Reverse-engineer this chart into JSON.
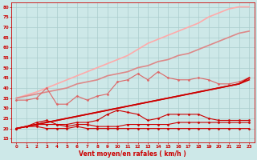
{
  "xlabel": "Vent moyen/en rafales ( km/h )",
  "x": [
    0,
    1,
    2,
    3,
    4,
    5,
    6,
    7,
    8,
    9,
    10,
    11,
    12,
    13,
    14,
    15,
    16,
    17,
    18,
    19,
    20,
    21,
    22,
    23
  ],
  "bg_color": "#cde8e8",
  "grid_color": "#aacccc",
  "line_flat1": {
    "y": [
      20,
      21,
      21,
      20,
      20,
      20,
      21,
      20,
      20,
      20,
      20,
      20,
      20,
      20,
      20,
      20,
      20,
      20,
      20,
      20,
      20,
      20,
      20,
      20
    ],
    "color": "#cc0000",
    "lw": 0.8,
    "marker": "D",
    "ms": 1.5
  },
  "line_flat2": {
    "y": [
      20,
      21,
      22,
      22,
      22,
      21,
      22,
      22,
      21,
      21,
      21,
      22,
      22,
      22,
      22,
      22,
      23,
      23,
      23,
      23,
      23,
      23,
      23,
      23
    ],
    "color": "#cc0000",
    "lw": 0.8,
    "marker": "D",
    "ms": 1.5
  },
  "line_hump": {
    "y": [
      20,
      21,
      23,
      24,
      22,
      22,
      23,
      23,
      24,
      27,
      29,
      28,
      27,
      24,
      25,
      27,
      27,
      27,
      27,
      25,
      24,
      24,
      24,
      24
    ],
    "color": "#cc0000",
    "lw": 0.8,
    "marker": "D",
    "ms": 1.5
  },
  "line_straight_dark": {
    "y": [
      20,
      21,
      22,
      23,
      24,
      25,
      26,
      27,
      28,
      29,
      30,
      31,
      32,
      33,
      34,
      35,
      36,
      37,
      38,
      39,
      40,
      41,
      42,
      44
    ],
    "color": "#cc0000",
    "lw": 1.2,
    "marker": null
  },
  "line_straight_dark2": {
    "y": [
      20,
      21,
      22,
      23,
      24,
      25,
      26,
      27,
      28,
      29,
      30,
      31,
      32,
      33,
      34,
      35,
      36,
      37,
      38,
      39,
      40,
      41,
      42,
      45
    ],
    "color": "#cc0000",
    "lw": 1.2,
    "marker": null
  },
  "line_zigzag_medium": {
    "y": [
      34,
      34,
      35,
      40,
      32,
      32,
      36,
      34,
      36,
      37,
      43,
      44,
      47,
      44,
      48,
      45,
      44,
      44,
      45,
      44,
      42,
      42,
      43,
      45
    ],
    "color": "#dd6666",
    "lw": 0.8,
    "marker": "D",
    "ms": 1.5
  },
  "line_straight_medium": {
    "y": [
      35,
      36,
      37,
      38,
      39,
      40,
      42,
      43,
      44,
      46,
      47,
      48,
      50,
      51,
      53,
      54,
      56,
      57,
      59,
      61,
      63,
      65,
      67,
      68
    ],
    "color": "#dd8888",
    "lw": 1.2,
    "marker": null
  },
  "line_straight_light": {
    "y": [
      35,
      36.5,
      38,
      40,
      42,
      44,
      46,
      48,
      50,
      52,
      54,
      56,
      59,
      62,
      64,
      66,
      68,
      70,
      72,
      75,
      77,
      79,
      80,
      80
    ],
    "color": "#ffaaaa",
    "lw": 1.2,
    "marker": null
  },
  "ylim": [
    13,
    82
  ],
  "yticks": [
    15,
    20,
    25,
    30,
    35,
    40,
    45,
    50,
    55,
    60,
    65,
    70,
    75,
    80
  ],
  "xticks": [
    0,
    1,
    2,
    3,
    4,
    5,
    6,
    7,
    8,
    9,
    10,
    11,
    12,
    13,
    14,
    15,
    16,
    17,
    18,
    19,
    20,
    21,
    22,
    23
  ]
}
